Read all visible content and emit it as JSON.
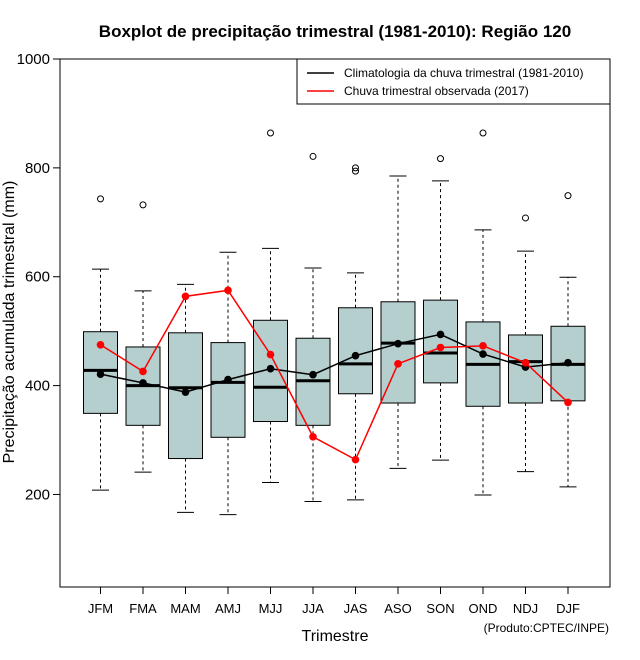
{
  "chart_data": {
    "type": "boxplot",
    "title": "Boxplot de precipitação trimestral (1981-2010): Região 120",
    "xlabel": "Trimestre",
    "ylabel": "Precipitação acumulada trimestral (mm)",
    "ylim": [
      30,
      1000
    ],
    "yticks": [
      200,
      400,
      600,
      800,
      1000
    ],
    "credit": "(Produto:CPTEC/INPE)",
    "categories": [
      "JFM",
      "FMA",
      "MAM",
      "AMJ",
      "MJJ",
      "JJA",
      "JAS",
      "ASO",
      "SON",
      "OND",
      "NDJ",
      "DJF"
    ],
    "boxes": [
      {
        "whisker_low": 208,
        "q1": 349,
        "median": 428,
        "q3": 499,
        "whisker_high": 614,
        "outliers": [
          743
        ]
      },
      {
        "whisker_low": 241,
        "q1": 327,
        "median": 400,
        "q3": 471,
        "whisker_high": 574,
        "outliers": [
          732
        ]
      },
      {
        "whisker_low": 167,
        "q1": 266,
        "median": 396,
        "q3": 497,
        "whisker_high": 586,
        "outliers": []
      },
      {
        "whisker_low": 163,
        "q1": 305,
        "median": 406,
        "q3": 479,
        "whisker_high": 645,
        "outliers": []
      },
      {
        "whisker_low": 222,
        "q1": 334,
        "median": 397,
        "q3": 520,
        "whisker_high": 652,
        "outliers": [
          864
        ]
      },
      {
        "whisker_low": 187,
        "q1": 327,
        "median": 409,
        "q3": 487,
        "whisker_high": 616,
        "outliers": [
          821
        ]
      },
      {
        "whisker_low": 190,
        "q1": 385,
        "median": 440,
        "q3": 543,
        "whisker_high": 607,
        "outliers": [
          800,
          794
        ]
      },
      {
        "whisker_low": 248,
        "q1": 368,
        "median": 478,
        "q3": 554,
        "whisker_high": 785,
        "outliers": []
      },
      {
        "whisker_low": 263,
        "q1": 405,
        "median": 460,
        "q3": 557,
        "whisker_high": 776,
        "outliers": [
          817
        ]
      },
      {
        "whisker_low": 199,
        "q1": 362,
        "median": 439,
        "q3": 517,
        "whisker_high": 686,
        "outliers": [
          864
        ]
      },
      {
        "whisker_low": 242,
        "q1": 368,
        "median": 444,
        "q3": 493,
        "whisker_high": 647,
        "outliers": [
          708
        ]
      },
      {
        "whisker_low": 214,
        "q1": 372,
        "median": 439,
        "q3": 509,
        "whisker_high": 599,
        "outliers": [
          749
        ]
      }
    ],
    "series": [
      {
        "name": "Climatologia da chuva trimestral (1981-2010)",
        "color": "#000000",
        "values": [
          421,
          405,
          388,
          411,
          431,
          420,
          455,
          477,
          494,
          458,
          434,
          442
        ]
      },
      {
        "name": "Chuva trimestral observada (2017)",
        "color": "#ff0000",
        "values": [
          475,
          426,
          564,
          575,
          457,
          306,
          264,
          440,
          470,
          473,
          442,
          369
        ]
      }
    ],
    "box_fill": "#b5cece"
  }
}
